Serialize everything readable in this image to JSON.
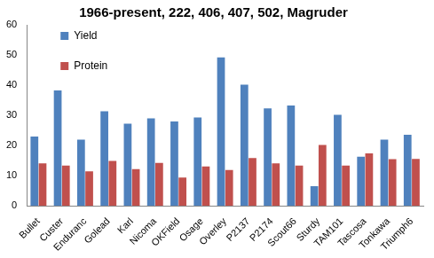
{
  "chart_data": {
    "type": "bar",
    "title": "1966-present, 222, 406, 407, 502, Magruder",
    "categories": [
      "Bullet",
      "Custer",
      "Enduranc",
      "Golead",
      "Karl",
      "Nicoma",
      "OKField",
      "Osage",
      "Overley",
      "P2137",
      "P2174",
      "Scout66",
      "Sturdy",
      "TAM101",
      "Tascosa",
      "Tonkawa",
      "Triumph6"
    ],
    "series": [
      {
        "name": "Yield",
        "color": "#4f81bd",
        "values": [
          23,
          38.3,
          22,
          31.4,
          27.3,
          29,
          28,
          29.3,
          49.2,
          40.2,
          32.3,
          33.3,
          6.6,
          30.2,
          16.3,
          22,
          23.6
        ]
      },
      {
        "name": "Protein",
        "color": "#c0504d",
        "values": [
          14.1,
          13.4,
          11.5,
          14.9,
          12.2,
          14.3,
          9.4,
          13.1,
          11.9,
          15.9,
          14.1,
          13.4,
          20.2,
          13.4,
          17.4,
          15.5,
          15.6
        ]
      }
    ],
    "ylim": [
      0,
      60
    ],
    "yticks": [
      0,
      10,
      20,
      30,
      40,
      50,
      60
    ],
    "grid": false,
    "legend": "upper left"
  }
}
